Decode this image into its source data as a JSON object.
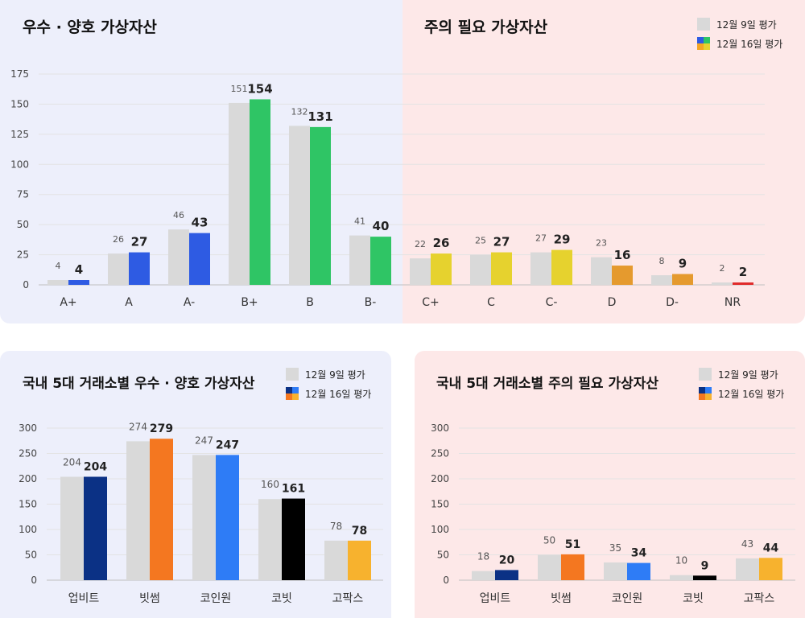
{
  "legend": {
    "before": "12월 9일 평가",
    "after": "12월 16일 평가"
  },
  "top": {
    "title_left": "우수 · 양호 가상자산",
    "title_right": "주의 필요 가상자산"
  },
  "bottom_left": {
    "title": "국내 5대 거래소별 우수 · 양호 가상자산"
  },
  "bottom_right": {
    "title": "국내 5대 거래소별 주의 필요 가상자산"
  },
  "chart_data": [
    {
      "type": "bar",
      "title": "우수 · 양호 가상자산 / 주의 필요 가상자산",
      "categories": [
        "A+",
        "A",
        "A-",
        "B+",
        "B",
        "B-",
        "C+",
        "C",
        "C-",
        "D",
        "D-",
        "NR"
      ],
      "series": [
        {
          "name": "12월 9일 평가",
          "values": [
            4,
            26,
            46,
            151,
            132,
            41,
            22,
            25,
            27,
            23,
            8,
            2
          ]
        },
        {
          "name": "12월 16일 평가",
          "values": [
            4,
            27,
            43,
            154,
            131,
            40,
            26,
            27,
            29,
            16,
            9,
            2
          ]
        }
      ],
      "colors": {
        "before": "#d9d9d9",
        "after": [
          "#2e5be3",
          "#2e5be3",
          "#2e5be3",
          "#2fc565",
          "#2fc565",
          "#2fc565",
          "#e6d22e",
          "#e6d22e",
          "#e6d22e",
          "#e59a2e",
          "#e59a2e",
          "#e02b2b"
        ]
      },
      "yticks": [
        0,
        25,
        50,
        75,
        100,
        125,
        150,
        175
      ],
      "ylim": [
        0,
        175
      ],
      "grid": true
    },
    {
      "type": "bar",
      "title": "국내 5대 거래소별 우수 · 양호 가상자산",
      "categories": [
        "업비트",
        "빗썸",
        "코인원",
        "코빗",
        "고팍스"
      ],
      "series": [
        {
          "name": "12월 9일 평가",
          "values": [
            204,
            274,
            247,
            160,
            78
          ]
        },
        {
          "name": "12월 16일 평가",
          "values": [
            204,
            279,
            247,
            161,
            78
          ]
        }
      ],
      "colors": {
        "before": "#d9d9d9",
        "after": [
          "#0b3185",
          "#f47720",
          "#2e7cf6",
          "#000000",
          "#f7b22e"
        ]
      },
      "yticks": [
        0,
        50,
        100,
        150,
        200,
        250,
        300
      ],
      "ylim": [
        0,
        300
      ],
      "grid": true
    },
    {
      "type": "bar",
      "title": "국내 5대 거래소별 주의 필요 가상자산",
      "categories": [
        "업비트",
        "빗썸",
        "코인원",
        "코빗",
        "고팍스"
      ],
      "series": [
        {
          "name": "12월 9일 평가",
          "values": [
            18,
            50,
            35,
            10,
            43
          ]
        },
        {
          "name": "12월 16일 평가",
          "values": [
            20,
            51,
            34,
            9,
            44
          ]
        }
      ],
      "colors": {
        "before": "#d9d9d9",
        "after": [
          "#0b3185",
          "#f47720",
          "#2e7cf6",
          "#000000",
          "#f7b22e"
        ]
      },
      "yticks": [
        0,
        50,
        100,
        150,
        200,
        250,
        300
      ],
      "ylim": [
        0,
        300
      ],
      "grid": true
    }
  ]
}
